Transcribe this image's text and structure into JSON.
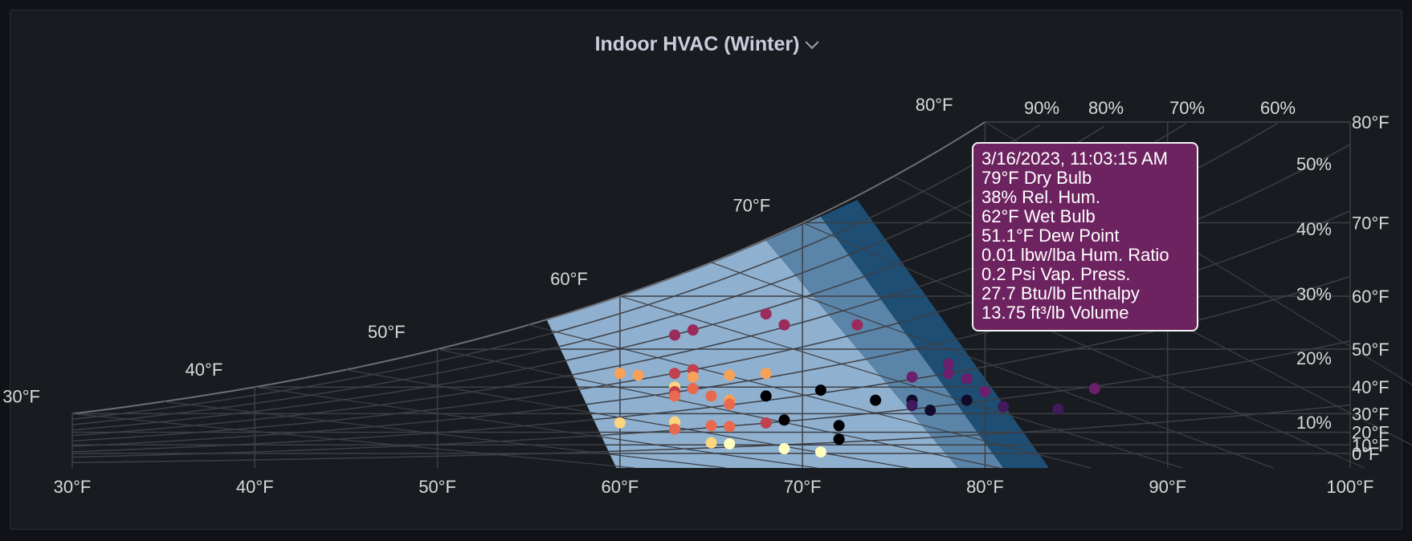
{
  "panel": {
    "title": "Indoor HVAC (Winter)"
  },
  "colors": {
    "background": "#181b1f",
    "comfort_zone_light": "#8fb0cf",
    "comfort_zone_mid": "#5a84a8",
    "comfort_zone_dark": "#1e4e73",
    "grid": "#3d3f45",
    "saturation": "#6b6e75",
    "text": "#d8d9da",
    "tooltip_bg": "#6d2360"
  },
  "chart_data": {
    "type": "scatter",
    "title": "Indoor HVAC (Winter)",
    "x_axis": {
      "min": 30,
      "max": 100,
      "ticks": [
        "30°F",
        "40°F",
        "50°F",
        "60°F",
        "70°F",
        "80°F",
        "90°F",
        "100°F"
      ]
    },
    "y_axis_right": {
      "ticks": [
        "0°F",
        "10°F",
        "20°F",
        "30°F",
        "40°F",
        "50°F",
        "60°F",
        "70°F",
        "80°F"
      ]
    },
    "saturation_labels": [
      "30°F",
      "40°F",
      "50°F",
      "60°F",
      "70°F",
      "80°F"
    ],
    "rh_labels_top": [
      "90%",
      "80%",
      "70%",
      "60%"
    ],
    "rh_labels_right": [
      "50%",
      "40%",
      "30%",
      "20%",
      "10%"
    ],
    "comfort_zone": {
      "dry_bulb_range": [
        68,
        80
      ],
      "rh_range": [
        20,
        80
      ]
    },
    "colorscale": [
      "#fcfdbf",
      "#fcd57d",
      "#f8a158",
      "#e8694d",
      "#c23f4e",
      "#9a2b5b",
      "#6c1f6c",
      "#401a5a",
      "#120a2b",
      "#000004"
    ],
    "points": [
      {
        "db": 60,
        "dp": 44,
        "c": 2
      },
      {
        "db": 61,
        "dp": 43.5,
        "c": 2
      },
      {
        "db": 63,
        "dp": 53,
        "c": 5
      },
      {
        "db": 64,
        "dp": 54,
        "c": 5
      },
      {
        "db": 63,
        "dp": 44,
        "c": 4
      },
      {
        "db": 64,
        "dp": 45,
        "c": 4
      },
      {
        "db": 64,
        "dp": 43,
        "c": 2
      },
      {
        "db": 66,
        "dp": 43.5,
        "c": 2
      },
      {
        "db": 68,
        "dp": 44,
        "c": 2
      },
      {
        "db": 68,
        "dp": 57,
        "c": 5
      },
      {
        "db": 69,
        "dp": 55,
        "c": 5
      },
      {
        "db": 73,
        "dp": 55,
        "c": 5
      },
      {
        "db": 63,
        "dp": 40,
        "c": 1
      },
      {
        "db": 64,
        "dp": 39.5,
        "c": 3
      },
      {
        "db": 63,
        "dp": 38.5,
        "c": 4
      },
      {
        "db": 63,
        "dp": 37,
        "c": 3
      },
      {
        "db": 65,
        "dp": 37,
        "c": 3
      },
      {
        "db": 66,
        "dp": 35.5,
        "c": 2
      },
      {
        "db": 66,
        "dp": 34,
        "c": 3
      },
      {
        "db": 68,
        "dp": 37,
        "c": 9
      },
      {
        "db": 71,
        "dp": 39,
        "c": 9
      },
      {
        "db": 74,
        "dp": 35.5,
        "c": 9
      },
      {
        "db": 76,
        "dp": 35.5,
        "c": 8
      },
      {
        "db": 76,
        "dp": 33.5,
        "c": 7
      },
      {
        "db": 77,
        "dp": 31.5,
        "c": 8
      },
      {
        "db": 79,
        "dp": 35.5,
        "c": 8
      },
      {
        "db": 81,
        "dp": 33,
        "c": 7
      },
      {
        "db": 84,
        "dp": 32,
        "c": 7
      },
      {
        "db": 80,
        "dp": 38.5,
        "c": 6
      },
      {
        "db": 86,
        "dp": 39.5,
        "c": 6
      },
      {
        "db": 76,
        "dp": 43,
        "c": 6
      },
      {
        "db": 78,
        "dp": 44,
        "c": 6
      },
      {
        "db": 79,
        "dp": 42.5,
        "c": 6
      },
      {
        "db": 78,
        "dp": 46.5,
        "c": 6
      },
      {
        "db": 60,
        "dp": 25.5,
        "c": 1
      },
      {
        "db": 63,
        "dp": 26,
        "c": 1
      },
      {
        "db": 63,
        "dp": 22,
        "c": 3
      },
      {
        "db": 65,
        "dp": 24,
        "c": 3
      },
      {
        "db": 66,
        "dp": 23.5,
        "c": 3
      },
      {
        "db": 68,
        "dp": 25.5,
        "c": 4
      },
      {
        "db": 69,
        "dp": 27,
        "c": 9
      },
      {
        "db": 72,
        "dp": 24,
        "c": 9
      },
      {
        "db": 72,
        "dp": 15,
        "c": 9
      },
      {
        "db": 65,
        "dp": 12,
        "c": 1
      },
      {
        "db": 66,
        "dp": 11,
        "c": 0
      },
      {
        "db": 69,
        "dp": 6,
        "c": 0
      },
      {
        "db": 71,
        "dp": 2,
        "c": 0
      }
    ],
    "tooltip": [
      "3/16/2023, 11:03:15 AM",
      "79°F Dry Bulb",
      "38% Rel. Hum.",
      "62°F Wet Bulb",
      "51.1°F Dew Point",
      "0.01 lbw/lba Hum. Ratio",
      "0.2 Psi Vap. Press.",
      "27.7 Btu/lb Enthalpy",
      "13.75 ft³/lb Volume"
    ]
  }
}
